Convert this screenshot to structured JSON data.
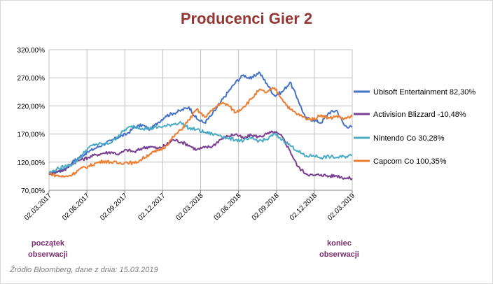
{
  "chart_data": {
    "type": "line",
    "title": "Producenci Gier 2",
    "xlabel": "",
    "ylabel": "",
    "x_ticks": [
      "02.03.2017",
      "02.06.2017",
      "02.09.2017",
      "02.12.2017",
      "02.03.2018",
      "02.06.2018",
      "02.09.2018",
      "02.12.2018",
      "02.03.2019"
    ],
    "y_ticks": [
      "70,00%",
      "120,00%",
      "170,00%",
      "220,00%",
      "270,00%",
      "320,00%"
    ],
    "ylim": [
      70,
      320
    ],
    "grid": true,
    "legend_position": "right",
    "series": [
      {
        "name": "Ubisoft Entertainment 82,30%",
        "color": "#4472c4",
        "values": [
          100,
          102,
          108,
          120,
          130,
          138,
          145,
          152,
          158,
          165,
          170,
          182,
          186,
          178,
          190,
          202,
          207,
          212,
          218,
          197,
          190,
          205,
          225,
          244,
          262,
          275,
          268,
          280,
          260,
          238,
          245,
          262,
          232,
          198,
          195,
          190,
          208,
          212,
          185,
          182
        ]
      },
      {
        "name": "Activision Blizzard -10,48%",
        "color": "#7b3f91",
        "values": [
          100,
          104,
          106,
          118,
          124,
          128,
          133,
          136,
          138,
          134,
          142,
          138,
          145,
          148,
          144,
          150,
          160,
          156,
          150,
          142,
          146,
          148,
          160,
          166,
          170,
          162,
          168,
          165,
          170,
          174,
          165,
          140,
          112,
          100,
          96,
          98,
          95,
          96,
          92,
          91
        ]
      },
      {
        "name": "Nintendo Co 30,28%",
        "color": "#4bacc6",
        "values": [
          100,
          108,
          112,
          116,
          128,
          145,
          152,
          152,
          155,
          168,
          180,
          184,
          180,
          180,
          182,
          184,
          188,
          190,
          180,
          178,
          173,
          170,
          168,
          162,
          160,
          158,
          162,
          158,
          160,
          170,
          160,
          150,
          140,
          130,
          132,
          128,
          130,
          128,
          130,
          132
        ]
      },
      {
        "name": "Capcom Co 100,35%",
        "color": "#ed7d31",
        "values": [
          100,
          96,
          94,
          98,
          108,
          112,
          118,
          122,
          120,
          118,
          120,
          118,
          126,
          135,
          140,
          148,
          165,
          178,
          195,
          214,
          200,
          212,
          225,
          222,
          208,
          218,
          232,
          248,
          244,
          252,
          232,
          214,
          205,
          198,
          196,
          204,
          198,
          202,
          197,
          201
        ]
      }
    ],
    "annotations": [
      "początek obserwacji",
      "koniec obserwacji"
    ]
  },
  "notes": {
    "start_line1": "początek",
    "start_line2": "obserwacji",
    "end_line1": "koniec",
    "end_line2": "obserwacji"
  },
  "source": "Źródło Bloomberg, dane z dnia: 15.03.2019"
}
